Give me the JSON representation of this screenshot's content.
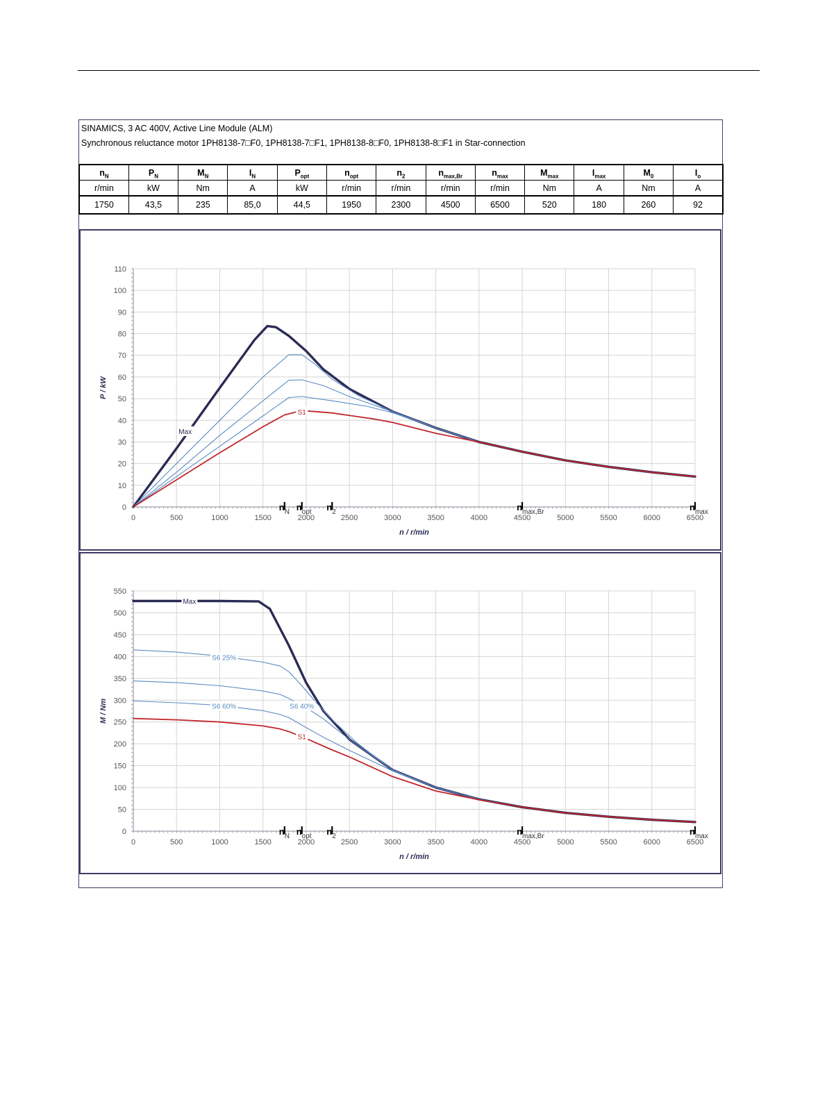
{
  "header": {
    "line1": "SINAMICS, 3 AC 400V, Active Line Module (ALM)",
    "line2": "Synchronous reluctance motor  1PH8138-7□F0,  1PH8138-7□F1,  1PH8138-8□F0,  1PH8138-8□F1   in Star-connection"
  },
  "params": {
    "columns": [
      {
        "sym": "n",
        "sub": "N",
        "unit": "r/min",
        "value": "1750"
      },
      {
        "sym": "P",
        "sub": "N",
        "unit": "kW",
        "value": "43,5"
      },
      {
        "sym": "M",
        "sub": "N",
        "unit": "Nm",
        "value": "235"
      },
      {
        "sym": "I",
        "sub": "N",
        "unit": "A",
        "value": "85,0"
      },
      {
        "sym": "P",
        "sub": "opt",
        "unit": "kW",
        "value": "44,5"
      },
      {
        "sym": "n",
        "sub": "opt",
        "unit": "r/min",
        "value": "1950"
      },
      {
        "sym": "n",
        "sub": "2",
        "unit": "r/min",
        "value": "2300"
      },
      {
        "sym": "n",
        "sub": "max,Br",
        "unit": "r/min",
        "value": "4500"
      },
      {
        "sym": "n",
        "sub": "max",
        "unit": "r/min",
        "value": "6500"
      },
      {
        "sym": "M",
        "sub": "max",
        "unit": "Nm",
        "value": "520"
      },
      {
        "sym": "I",
        "sub": "max",
        "unit": "A",
        "value": "180"
      },
      {
        "sym": "M",
        "sub": "0",
        "unit": "Nm",
        "value": "260"
      },
      {
        "sym": "I",
        "sub": "o",
        "unit": "A",
        "value": "92"
      }
    ]
  },
  "chart_data": [
    {
      "type": "line",
      "xlabel": "n / r/min",
      "ylabel": "P / kW",
      "xlim": [
        0,
        6500
      ],
      "ylim": [
        0,
        110
      ],
      "xticks": [
        0,
        500,
        1000,
        1500,
        2000,
        2500,
        3000,
        3500,
        4000,
        4500,
        5000,
        5500,
        6000,
        6500
      ],
      "yticks": [
        0,
        10,
        20,
        30,
        40,
        50,
        60,
        70,
        80,
        90,
        100,
        110
      ],
      "grid": true,
      "markers": [
        {
          "x": 1750,
          "sym": "n",
          "sub": "N"
        },
        {
          "x": 1950,
          "sym": "n",
          "sub": "opt"
        },
        {
          "x": 2300,
          "sym": "n",
          "sub": "2"
        },
        {
          "x": 4500,
          "sym": "n",
          "sub": "max,Br"
        },
        {
          "x": 6500,
          "sym": "n",
          "sub": "max"
        }
      ],
      "series": [
        {
          "name": "Max",
          "color": "#2b2b55",
          "width": 3.4,
          "label_at": [
            600,
            35
          ],
          "points": [
            [
              0,
              0
            ],
            [
              500,
              27
            ],
            [
              1000,
              55
            ],
            [
              1400,
              77
            ],
            [
              1550,
              83.5
            ],
            [
              1650,
              83
            ],
            [
              1800,
              79
            ],
            [
              2000,
              72
            ],
            [
              2200,
              63.5
            ],
            [
              2500,
              54.5
            ],
            [
              3000,
              44
            ],
            [
              3500,
              36.5
            ],
            [
              4000,
              30
            ],
            [
              4500,
              25.5
            ],
            [
              5000,
              21.5
            ],
            [
              5500,
              18.5
            ],
            [
              6000,
              16
            ],
            [
              6500,
              14
            ]
          ]
        },
        {
          "name": "",
          "color": "#5b8ac2",
          "width": 1.1,
          "points": [
            [
              0,
              0
            ],
            [
              500,
              20
            ],
            [
              1000,
              40
            ],
            [
              1500,
              60
            ],
            [
              1800,
              70.3
            ],
            [
              1950,
              70.3
            ],
            [
              2100,
              66
            ],
            [
              2300,
              59
            ],
            [
              2600,
              51.5
            ],
            [
              3000,
              44
            ],
            [
              3500,
              36.5
            ],
            [
              4000,
              30
            ],
            [
              4500,
              25.5
            ],
            [
              5000,
              21.5
            ],
            [
              5500,
              18.5
            ],
            [
              6000,
              16
            ],
            [
              6500,
              14
            ]
          ]
        },
        {
          "name": "",
          "color": "#5b8ac2",
          "width": 1.1,
          "points": [
            [
              0,
              0
            ],
            [
              500,
              16
            ],
            [
              1000,
              33
            ],
            [
              1500,
              49
            ],
            [
              1800,
              58.5
            ],
            [
              1950,
              58.7
            ],
            [
              2200,
              56
            ],
            [
              2500,
              51
            ],
            [
              3000,
              44
            ],
            [
              3500,
              36.5
            ],
            [
              4000,
              30
            ],
            [
              4500,
              25.5
            ],
            [
              5000,
              21.5
            ],
            [
              5500,
              18.5
            ],
            [
              6000,
              16
            ],
            [
              6500,
              14
            ]
          ]
        },
        {
          "name": "",
          "color": "#5b8ac2",
          "width": 1.1,
          "points": [
            [
              0,
              0
            ],
            [
              500,
              14
            ],
            [
              1000,
              28
            ],
            [
              1500,
              42
            ],
            [
              1800,
              50.5
            ],
            [
              1950,
              51
            ],
            [
              2300,
              49
            ],
            [
              2700,
              46.5
            ],
            [
              3000,
              43.5
            ],
            [
              3500,
              36.5
            ],
            [
              4000,
              30
            ],
            [
              4500,
              25.5
            ],
            [
              5000,
              21.5
            ],
            [
              5500,
              18.5
            ],
            [
              6000,
              16
            ],
            [
              6500,
              14
            ]
          ]
        },
        {
          "name": "S1",
          "color": "#c0252a",
          "width": 1.8,
          "label_at": [
            1950,
            44
          ],
          "points": [
            [
              0,
              0
            ],
            [
              500,
              12.5
            ],
            [
              1000,
              25
            ],
            [
              1500,
              37
            ],
            [
              1750,
              42.5
            ],
            [
              1950,
              44.5
            ],
            [
              2300,
              43.4
            ],
            [
              2800,
              40.5
            ],
            [
              3000,
              39
            ],
            [
              3500,
              34
            ],
            [
              4000,
              30
            ],
            [
              4500,
              25.5
            ],
            [
              5000,
              21.5
            ],
            [
              5500,
              18.5
            ],
            [
              6000,
              16
            ],
            [
              6500,
              14
            ]
          ]
        }
      ]
    },
    {
      "type": "line",
      "xlabel": "n / r/min",
      "ylabel": "M / Nm",
      "xlim": [
        0,
        6500
      ],
      "ylim": [
        0,
        550
      ],
      "xticks": [
        0,
        500,
        1000,
        1500,
        2000,
        2500,
        3000,
        3500,
        4000,
        4500,
        5000,
        5500,
        6000,
        6500
      ],
      "yticks": [
        0,
        50,
        100,
        150,
        200,
        250,
        300,
        350,
        400,
        450,
        500,
        550
      ],
      "grid": true,
      "markers": [
        {
          "x": 1750,
          "sym": "n",
          "sub": "N"
        },
        {
          "x": 1950,
          "sym": "n",
          "sub": "opt"
        },
        {
          "x": 2300,
          "sym": "n",
          "sub": "2"
        },
        {
          "x": 4500,
          "sym": "n",
          "sub": "max,Br"
        },
        {
          "x": 6500,
          "sym": "n",
          "sub": "max"
        }
      ],
      "series": [
        {
          "name": "Max",
          "color": "#2b2b55",
          "width": 3.4,
          "label_at": [
            650,
            527
          ],
          "points": [
            [
              0,
              527
            ],
            [
              1000,
              527
            ],
            [
              1450,
              526
            ],
            [
              1580,
              509
            ],
            [
              1800,
              425
            ],
            [
              2000,
              340
            ],
            [
              2200,
              275
            ],
            [
              2500,
              210
            ],
            [
              3000,
              140
            ],
            [
              3500,
              100
            ],
            [
              4000,
              73
            ],
            [
              4500,
              55
            ],
            [
              5000,
              42
            ],
            [
              5500,
              33
            ],
            [
              6000,
              26
            ],
            [
              6500,
              21
            ]
          ]
        },
        {
          "name": "S6 25%",
          "color": "#5b8ac2",
          "width": 1.1,
          "label_at": [
            1050,
            398
          ],
          "points": [
            [
              0,
              415
            ],
            [
              500,
              410
            ],
            [
              1000,
              401
            ],
            [
              1500,
              387
            ],
            [
              1700,
              378
            ],
            [
              1800,
              365
            ],
            [
              1950,
              333
            ],
            [
              2100,
              298
            ],
            [
              2300,
              255
            ],
            [
              2600,
              200
            ],
            [
              3000,
              140
            ],
            [
              3500,
              100
            ],
            [
              4000,
              73
            ],
            [
              4500,
              55
            ],
            [
              5000,
              42
            ],
            [
              5500,
              33
            ],
            [
              6000,
              26
            ],
            [
              6500,
              21
            ]
          ]
        },
        {
          "name": "",
          "color": "#5b8ac2",
          "width": 1.1,
          "points": [
            [
              0,
              344
            ],
            [
              500,
              340
            ],
            [
              1000,
              333
            ],
            [
              1500,
              321
            ],
            [
              1700,
              313
            ],
            [
              1800,
              304
            ],
            [
              2000,
              283
            ],
            [
              2200,
              257
            ],
            [
              2500,
              210
            ],
            [
              3000,
              140
            ],
            [
              3500,
              100
            ],
            [
              4000,
              73
            ],
            [
              4500,
              55
            ],
            [
              5000,
              42
            ],
            [
              5500,
              33
            ],
            [
              6000,
              26
            ],
            [
              6500,
              21
            ]
          ]
        },
        {
          "name": "S6 60%",
          "color": "#5b8ac2",
          "width": 1.1,
          "label_at": [
            1050,
            287
          ],
          "points": [
            [
              0,
              298
            ],
            [
              500,
              294
            ],
            [
              1000,
              288
            ],
            [
              1500,
              276
            ],
            [
              1700,
              267
            ],
            [
              1800,
              260
            ],
            [
              2000,
              237
            ],
            [
              2200,
              215
            ],
            [
              2500,
              185
            ],
            [
              3000,
              138
            ],
            [
              3500,
              100
            ],
            [
              4000,
              73
            ],
            [
              4500,
              55
            ],
            [
              5000,
              42
            ],
            [
              5500,
              33
            ],
            [
              6000,
              26
            ],
            [
              6500,
              21
            ]
          ]
        },
        {
          "name": "S1",
          "color": "#c0252a",
          "width": 1.8,
          "label_at": [
            1950,
            217
          ],
          "points": [
            [
              0,
              258
            ],
            [
              500,
              255
            ],
            [
              1000,
              250
            ],
            [
              1500,
              241
            ],
            [
              1700,
              234
            ],
            [
              1800,
              228
            ],
            [
              2000,
              212
            ],
            [
              2300,
              186
            ],
            [
              2500,
              170
            ],
            [
              3000,
              125
            ],
            [
              3500,
              92
            ],
            [
              4000,
              72
            ],
            [
              4500,
              55
            ],
            [
              5000,
              42
            ],
            [
              5500,
              33
            ],
            [
              6000,
              26
            ],
            [
              6500,
              21
            ]
          ]
        }
      ],
      "annotations": [
        {
          "text": "S6 40%",
          "x": 1950,
          "y": 287,
          "color": "#5b8ac2"
        }
      ]
    }
  ]
}
